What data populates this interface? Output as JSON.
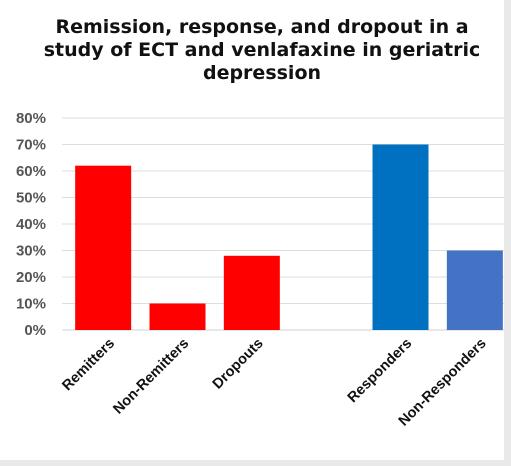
{
  "chart_data": {
    "type": "bar",
    "title_lines": [
      "Remission, response, and dropout in a",
      "study of ECT and venlafaxine in geriatric",
      "depression"
    ],
    "xlabel": "",
    "ylabel": "",
    "ylim": [
      0,
      80
    ],
    "y_ticks": [
      "0%",
      "10%",
      "20%",
      "30%",
      "40%",
      "50%",
      "60%",
      "70%",
      "80%"
    ],
    "grid": true,
    "categories": [
      "Remitters",
      "Non-Remitters",
      "Dropouts",
      "",
      "Responders",
      "Non-Responders"
    ],
    "values": [
      62,
      10,
      28,
      null,
      70,
      30
    ],
    "colors": [
      "#ff0000",
      "#ff0000",
      "#ff0000",
      "",
      "#0070c0",
      "#4472c4"
    ]
  }
}
